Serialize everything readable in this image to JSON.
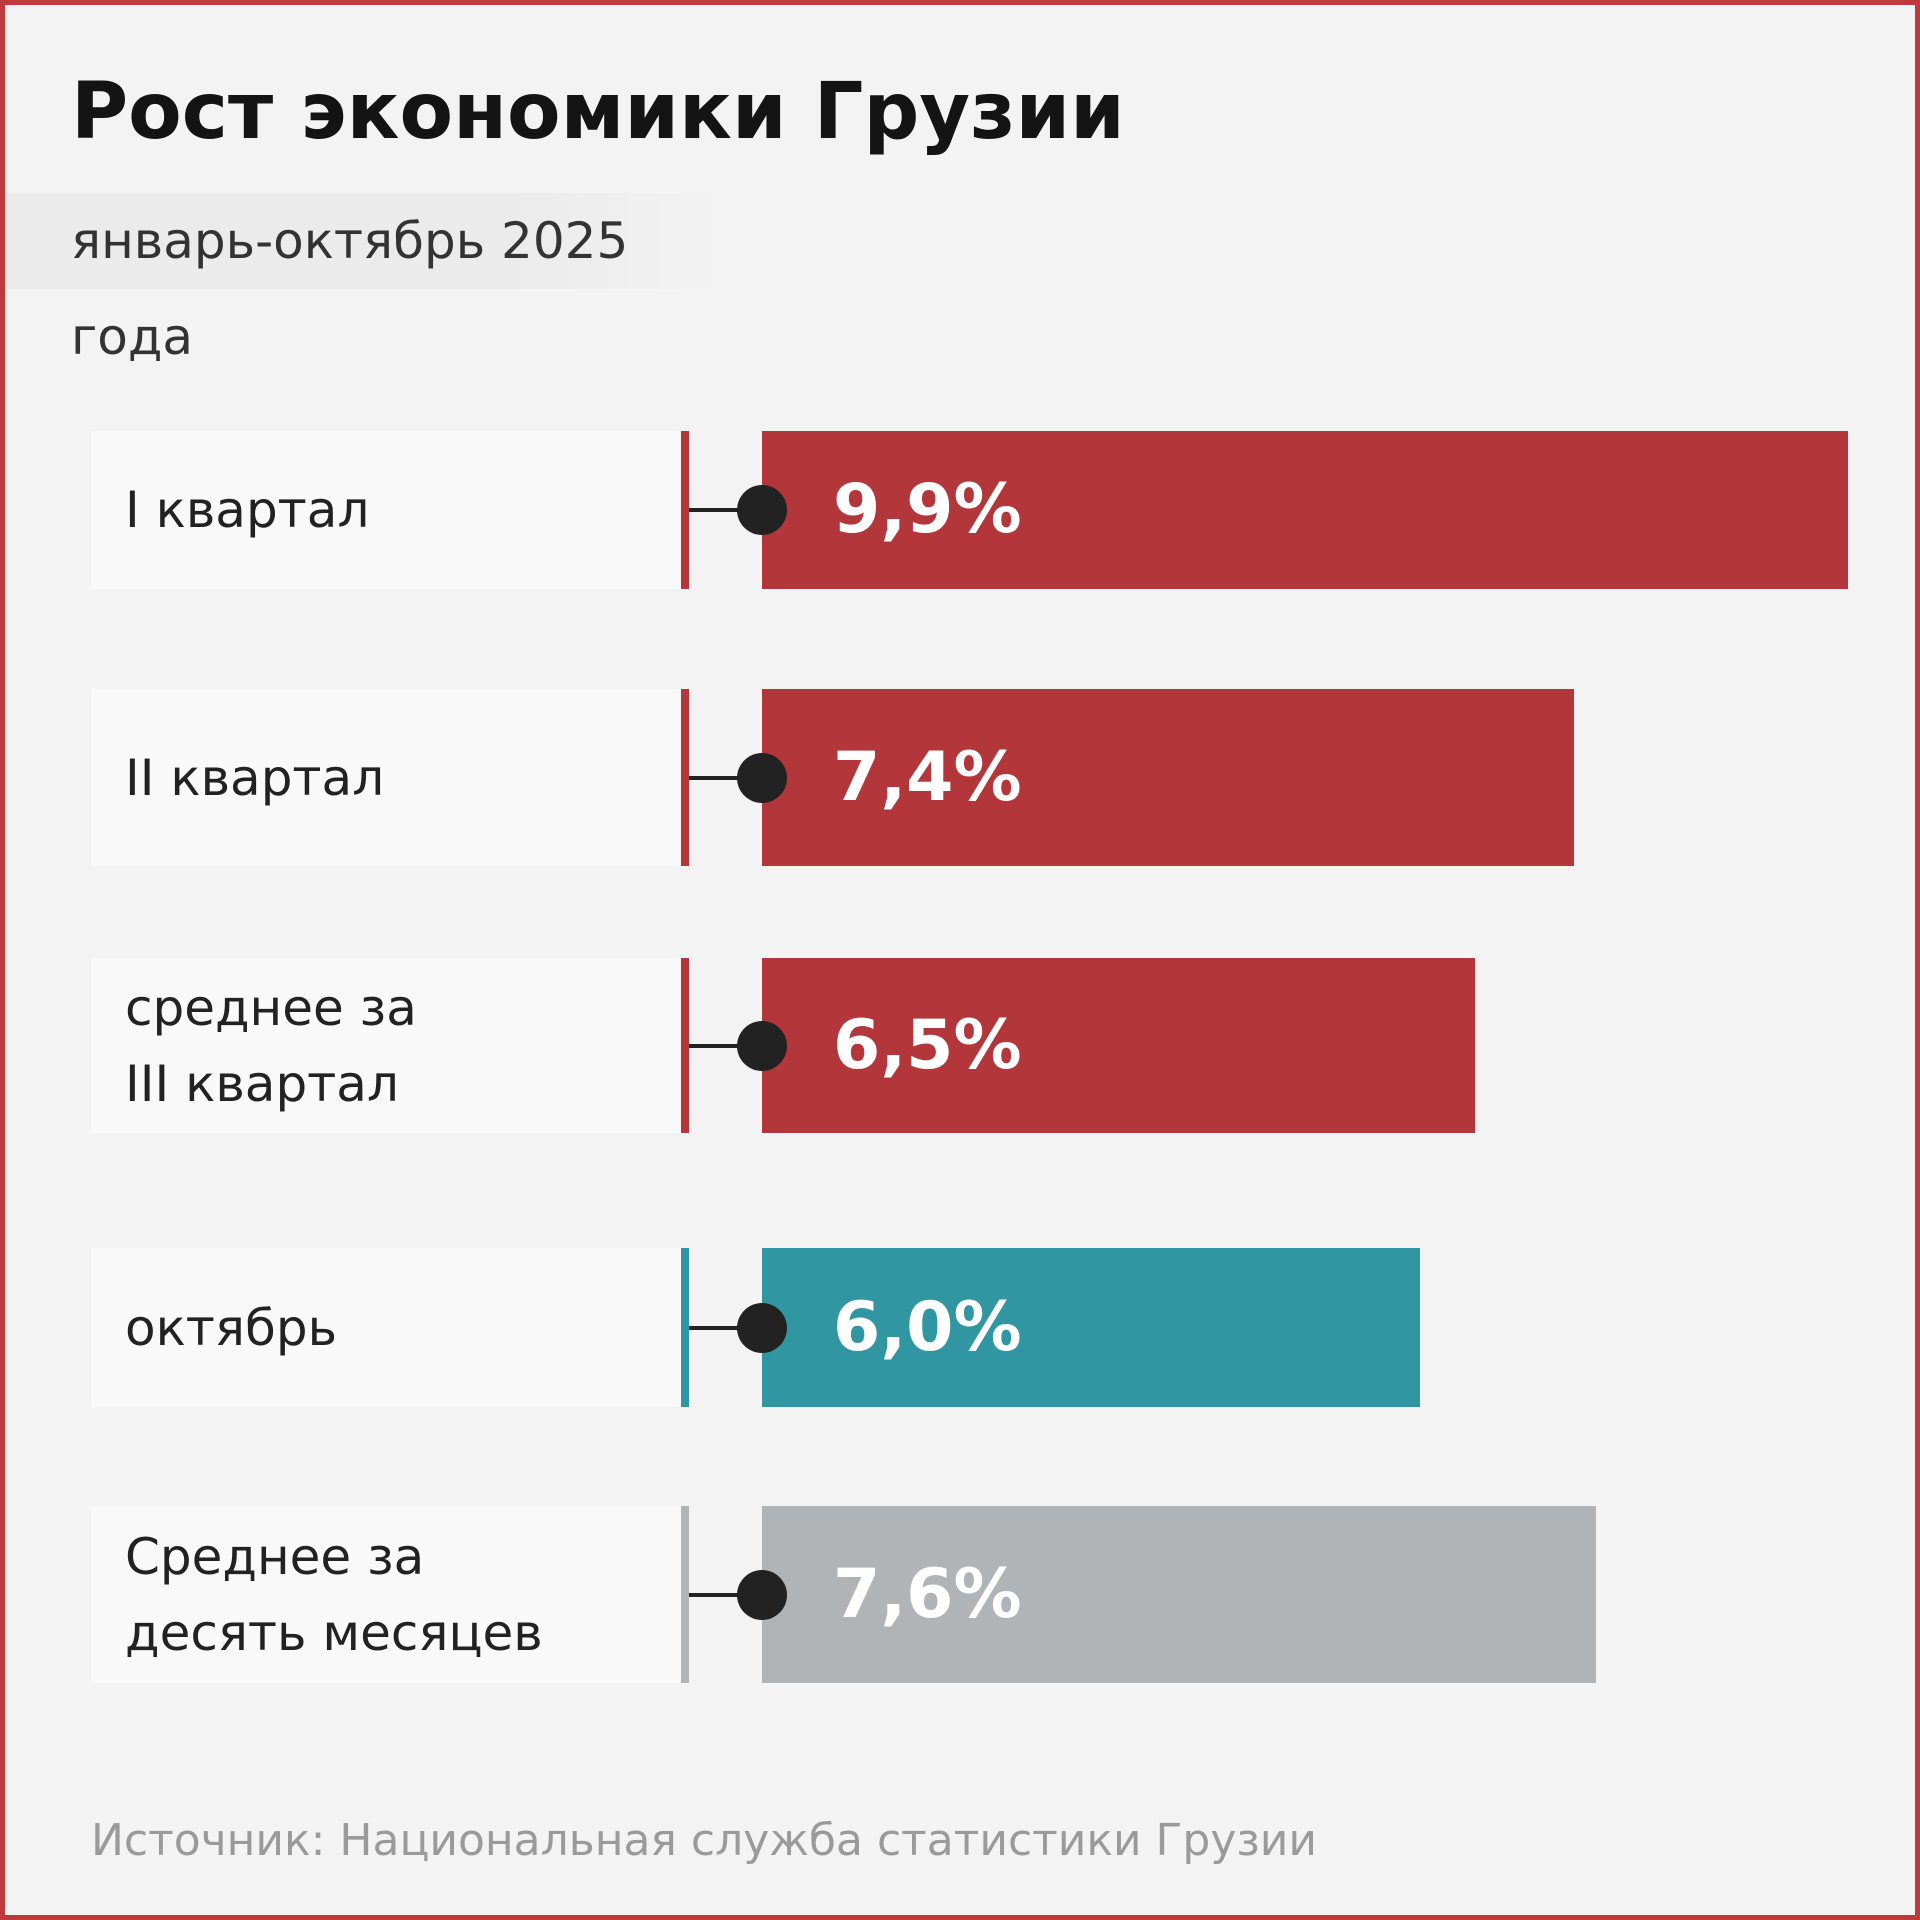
{
  "chart_data": {
    "type": "bar",
    "orientation": "horizontal",
    "title": "Рост экономики Грузии",
    "subtitle": "январь-октябрь 2025 года",
    "categories": [
      "I квартал",
      "II квартал",
      "среднее за\nIII квартал",
      "октябрь",
      "Среднее за\nдесять месяцев"
    ],
    "values": [
      9.9,
      7.4,
      6.5,
      6.0,
      7.6
    ],
    "value_labels": [
      "9,9%",
      "7,4%",
      "6,5%",
      "6,0%",
      "7,6%"
    ],
    "colors": [
      "#b3363a",
      "#b3363a",
      "#b3363a",
      "#3097a2",
      "#b1b4b7"
    ],
    "source": "Источник: Национальная служба статистики Грузии"
  }
}
